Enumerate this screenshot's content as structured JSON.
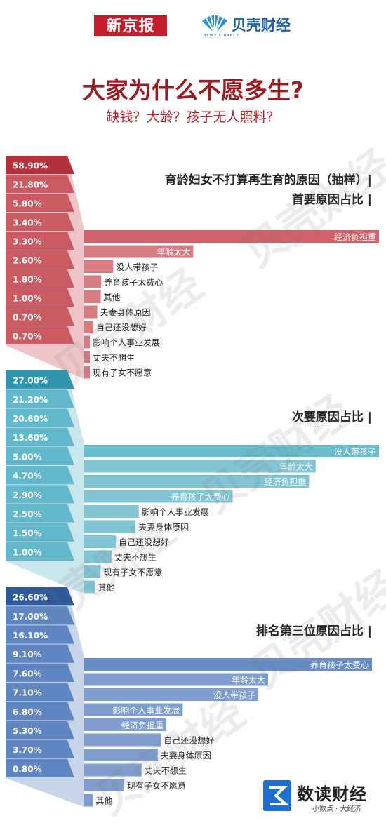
{
  "header": {
    "brand_xjb": "新京报",
    "brand_bk": "贝壳财经",
    "brand_bk_sub": "BEIKE FINANCE",
    "title": "大家为什么不愿多生?",
    "subtitle": "缺钱？大龄？孩子无人照料？"
  },
  "watermark_text": "贝壳财经",
  "footer": {
    "logo_main": "数读财经",
    "logo_sub": "小数点 · 大经济"
  },
  "chart_data": [
    {
      "type": "bar",
      "title": "育龄妇女不打算再生育的原因（抽样）|",
      "subtitle": "首要原因占比 |",
      "color": "#b3313a",
      "color_light": "#cc5a63",
      "categories": [
        "经济负担重",
        "年龄太大",
        "没人带孩子",
        "养育孩子太费心",
        "其他",
        "夫妻身体原因",
        "自己还没想好",
        "影响个人事业发展",
        "丈夫不想生",
        "现有子女不愿意"
      ],
      "values": [
        58.9,
        21.8,
        5.8,
        3.4,
        3.3,
        2.6,
        1.8,
        1.0,
        0.7,
        0.7
      ],
      "value_labels": [
        "58.90%",
        "21.80%",
        "5.80%",
        "3.40%",
        "3.30%",
        "2.60%",
        "1.80%",
        "1.00%",
        "0.70%",
        "0.70%"
      ]
    },
    {
      "type": "bar",
      "title": "",
      "subtitle": "次要原因占比 |",
      "color": "#2f95ad",
      "color_light": "#63b7ca",
      "categories": [
        "没人带孩子",
        "年龄太大",
        "经济负担重",
        "养育孩子太费心",
        "影响个人事业发展",
        "夫妻身体原因",
        "自己还没想好",
        "丈夫不想生",
        "现有子女不愿意",
        "其他"
      ],
      "values": [
        27.0,
        21.2,
        20.6,
        13.6,
        5.0,
        4.7,
        2.9,
        2.5,
        1.5,
        1.0
      ],
      "value_labels": [
        "27.00%",
        "21.20%",
        "20.60%",
        "13.60%",
        "5.00%",
        "4.70%",
        "2.90%",
        "2.50%",
        "1.50%",
        "1.00%"
      ]
    },
    {
      "type": "bar",
      "title": "",
      "subtitle": "排名第三位原因占比 |",
      "color": "#2e5a9c",
      "color_light": "#5f86c1",
      "categories": [
        "养育孩子太费心",
        "年龄太大",
        "没人带孩子",
        "影响个人事业发展",
        "经济负担重",
        "自己还没想好",
        "夫妻身体原因",
        "丈夫不想生",
        "现有子女不愿意",
        "其他"
      ],
      "values": [
        26.6,
        17.0,
        16.1,
        9.1,
        7.6,
        7.1,
        6.8,
        5.3,
        3.7,
        0.8
      ],
      "value_labels": [
        "26.60%",
        "17.00%",
        "16.10%",
        "9.10%",
        "7.60%",
        "7.10%",
        "6.80%",
        "5.30%",
        "3.70%",
        "0.80%"
      ]
    }
  ]
}
